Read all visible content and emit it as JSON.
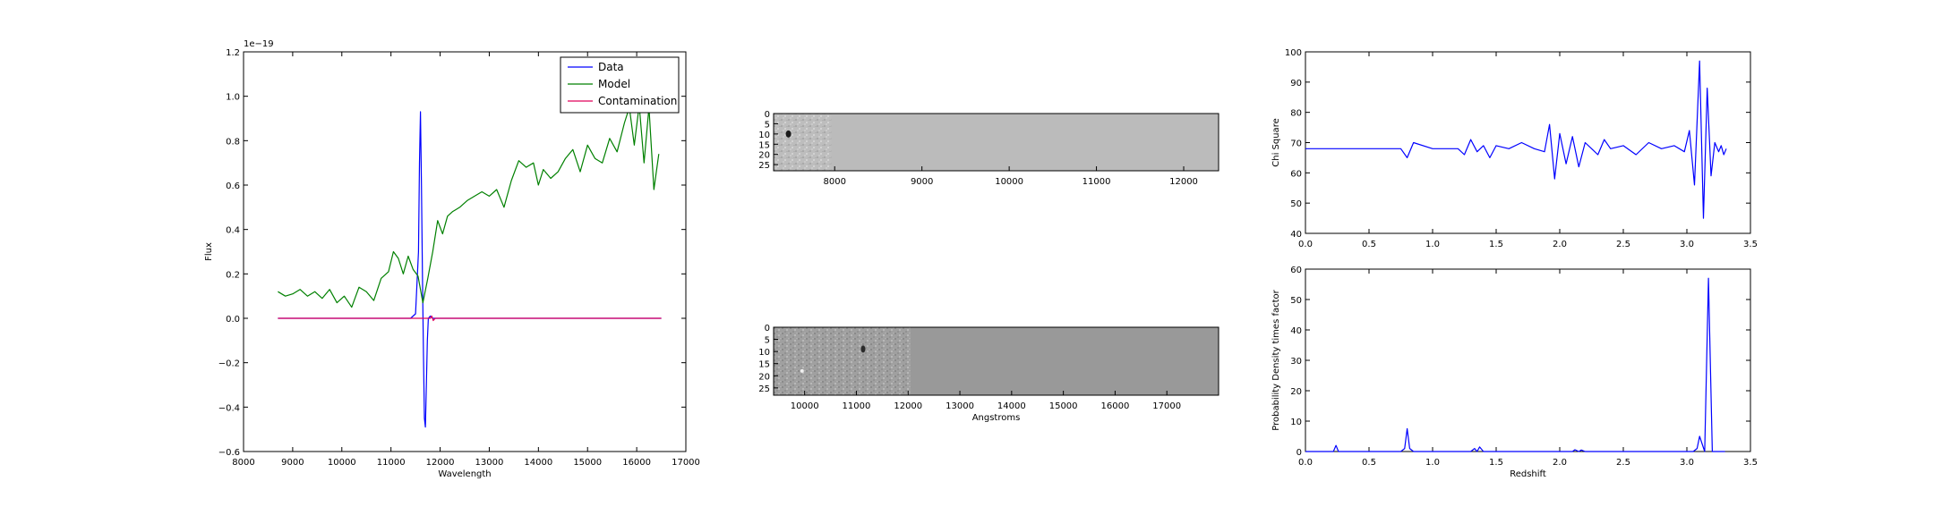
{
  "chart_data": [
    {
      "id": "spectrum",
      "type": "line",
      "xlabel": "Wavelength",
      "ylabel": "Flux",
      "offset_text": "1e−19",
      "xlim": [
        8000,
        17000
      ],
      "ylim": [
        -0.6,
        1.2
      ],
      "xticks": [
        8000,
        9000,
        10000,
        11000,
        12000,
        13000,
        14000,
        15000,
        16000,
        17000
      ],
      "yticks": [
        -0.6,
        -0.4,
        -0.2,
        0.0,
        0.2,
        0.4,
        0.6,
        0.8,
        1.0,
        1.2
      ],
      "ytick_labels": [
        "−0.6",
        "−0.4",
        "−0.2",
        "0.0",
        "0.2",
        "0.4",
        "0.6",
        "0.8",
        "1.0",
        "1.2"
      ],
      "legend": {
        "position": "top-right"
      },
      "series": [
        {
          "name": "Data",
          "color": "#0000ff",
          "x": [
            8700,
            11400,
            11500,
            11560,
            11580,
            11600,
            11620,
            11640,
            11660,
            11680,
            11700,
            11720,
            11740,
            11760,
            11800,
            11850,
            11900,
            16500
          ],
          "y": [
            0.0,
            0.0,
            0.02,
            0.3,
            0.7,
            0.93,
            0.6,
            0.2,
            -0.15,
            -0.45,
            -0.49,
            -0.3,
            -0.1,
            0.0,
            0.01,
            0.0,
            0.0,
            0.0
          ]
        },
        {
          "name": "Model",
          "color": "#008000",
          "x": [
            8700,
            8850,
            9000,
            9150,
            9300,
            9450,
            9600,
            9750,
            9900,
            10050,
            10200,
            10350,
            10500,
            10650,
            10800,
            10950,
            11050,
            11150,
            11250,
            11350,
            11450,
            11550,
            11650,
            11750,
            11850,
            11950,
            12050,
            12150,
            12250,
            12400,
            12550,
            12700,
            12850,
            13000,
            13150,
            13300,
            13450,
            13600,
            13750,
            13900,
            14000,
            14100,
            14250,
            14400,
            14550,
            14700,
            14850,
            15000,
            15150,
            15300,
            15450,
            15600,
            15750,
            15850,
            15950,
            16050,
            16150,
            16250,
            16350,
            16450
          ],
          "y": [
            0.12,
            0.1,
            0.11,
            0.13,
            0.1,
            0.12,
            0.09,
            0.13,
            0.07,
            0.1,
            0.05,
            0.14,
            0.12,
            0.08,
            0.18,
            0.21,
            0.3,
            0.27,
            0.2,
            0.28,
            0.22,
            0.19,
            0.07,
            0.18,
            0.3,
            0.44,
            0.38,
            0.46,
            0.48,
            0.5,
            0.53,
            0.55,
            0.57,
            0.55,
            0.58,
            0.5,
            0.62,
            0.71,
            0.68,
            0.7,
            0.6,
            0.67,
            0.63,
            0.66,
            0.72,
            0.76,
            0.66,
            0.78,
            0.72,
            0.7,
            0.81,
            0.75,
            0.88,
            0.95,
            0.78,
            0.96,
            0.7,
            0.95,
            0.58,
            0.74
          ]
        },
        {
          "name": "Contamination",
          "color": "#e0005a",
          "x": [
            8700,
            11800,
            11830,
            11860,
            11900,
            16500
          ],
          "y": [
            0.0,
            0.0,
            0.01,
            -0.01,
            0.0,
            0.0
          ]
        }
      ]
    },
    {
      "id": "image-top",
      "type": "heatmap",
      "xlim": [
        7300,
        12400
      ],
      "ylim": [
        28,
        0
      ],
      "xticks": [
        8000,
        9000,
        10000,
        11000,
        12000
      ],
      "yticks": [
        0,
        5,
        10,
        15,
        20,
        25
      ],
      "textured_extent": [
        7300,
        7960
      ],
      "background_color": "#bbbbbb"
    },
    {
      "id": "image-bottom",
      "type": "heatmap",
      "xlabel": "Angstroms",
      "xlim": [
        9400,
        18000
      ],
      "ylim": [
        28,
        0
      ],
      "xticks": [
        10000,
        11000,
        12000,
        13000,
        14000,
        15000,
        16000,
        17000
      ],
      "yticks": [
        0,
        5,
        10,
        15,
        20,
        25
      ],
      "textured_extent": [
        9400,
        12050
      ],
      "background_color": "#999999"
    },
    {
      "id": "chi-square",
      "type": "line",
      "ylabel": "Chi Square",
      "xlim": [
        0.0,
        3.5
      ],
      "ylim": [
        40,
        100
      ],
      "xticks": [
        0.0,
        0.5,
        1.0,
        1.5,
        2.0,
        2.5,
        3.0,
        3.5
      ],
      "xtick_labels": [
        "0.0",
        "0.5",
        "1.0",
        "1.5",
        "2.0",
        "2.5",
        "3.0",
        "3.5"
      ],
      "yticks": [
        40,
        50,
        60,
        70,
        80,
        90,
        100
      ],
      "series": [
        {
          "color": "#0000ff",
          "x": [
            0.0,
            0.2,
            0.4,
            0.6,
            0.75,
            0.8,
            0.85,
            1.0,
            1.2,
            1.25,
            1.3,
            1.35,
            1.4,
            1.45,
            1.5,
            1.6,
            1.7,
            1.8,
            1.88,
            1.92,
            1.96,
            2.0,
            2.05,
            2.1,
            2.15,
            2.2,
            2.3,
            2.35,
            2.4,
            2.5,
            2.6,
            2.7,
            2.8,
            2.9,
            2.98,
            3.02,
            3.06,
            3.1,
            3.13,
            3.16,
            3.19,
            3.22,
            3.25,
            3.27,
            3.29,
            3.31
          ],
          "y": [
            68,
            68,
            68,
            68,
            68,
            65,
            70,
            68,
            68,
            66,
            71,
            67,
            69,
            65,
            69,
            68,
            70,
            68,
            67,
            76,
            58,
            73,
            63,
            72,
            62,
            70,
            66,
            71,
            68,
            69,
            66,
            70,
            68,
            69,
            67,
            74,
            56,
            97,
            45,
            88,
            59,
            70,
            67,
            69,
            66,
            68
          ]
        }
      ]
    },
    {
      "id": "probability-density",
      "type": "line",
      "xlabel": "Redshift",
      "ylabel": "Probability Density times factor",
      "xlim": [
        0.0,
        3.5
      ],
      "ylim": [
        0,
        60
      ],
      "xticks": [
        0.0,
        0.5,
        1.0,
        1.5,
        2.0,
        2.5,
        3.0,
        3.5
      ],
      "xtick_labels": [
        "0.0",
        "0.5",
        "1.0",
        "1.5",
        "2.0",
        "2.5",
        "3.0",
        "3.5"
      ],
      "yticks": [
        0,
        10,
        20,
        30,
        40,
        50,
        60
      ],
      "series": [
        {
          "color": "#0000ff",
          "x": [
            0.0,
            0.22,
            0.24,
            0.26,
            0.75,
            0.78,
            0.8,
            0.82,
            0.85,
            1.3,
            1.33,
            1.35,
            1.37,
            1.4,
            2.1,
            2.12,
            2.15,
            2.17,
            2.2,
            3.05,
            3.08,
            3.1,
            3.14,
            3.17,
            3.2,
            3.23,
            3.3
          ],
          "y": [
            0,
            0,
            2,
            0,
            0,
            1,
            7.5,
            1,
            0,
            0,
            1,
            0,
            1.5,
            0,
            0,
            0.6,
            0,
            0.5,
            0,
            0,
            1,
            5,
            0,
            57,
            0,
            0,
            0
          ]
        }
      ]
    }
  ]
}
